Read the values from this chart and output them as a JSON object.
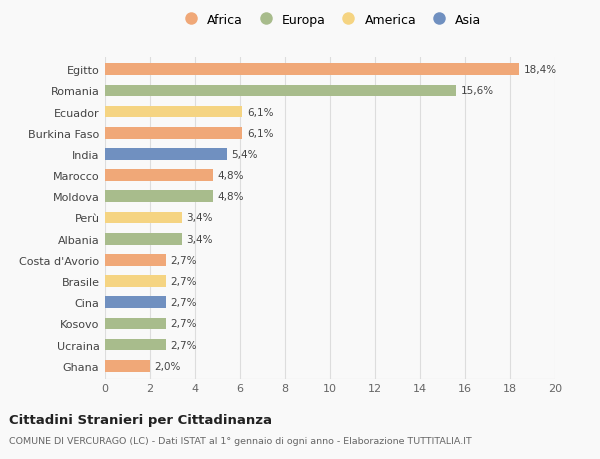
{
  "countries": [
    "Egitto",
    "Romania",
    "Ecuador",
    "Burkina Faso",
    "India",
    "Marocco",
    "Moldova",
    "Perù",
    "Albania",
    "Costa d'Avorio",
    "Brasile",
    "Cina",
    "Kosovo",
    "Ucraina",
    "Ghana"
  ],
  "values": [
    18.4,
    15.6,
    6.1,
    6.1,
    5.4,
    4.8,
    4.8,
    3.4,
    3.4,
    2.7,
    2.7,
    2.7,
    2.7,
    2.7,
    2.0
  ],
  "labels": [
    "18,4%",
    "15,6%",
    "6,1%",
    "6,1%",
    "5,4%",
    "4,8%",
    "4,8%",
    "3,4%",
    "3,4%",
    "2,7%",
    "2,7%",
    "2,7%",
    "2,7%",
    "2,7%",
    "2,0%"
  ],
  "continents": [
    "Africa",
    "Europa",
    "America",
    "Africa",
    "Asia",
    "Africa",
    "Europa",
    "America",
    "Europa",
    "Africa",
    "America",
    "Asia",
    "Europa",
    "Europa",
    "Africa"
  ],
  "continent_colors": {
    "Africa": "#F0A878",
    "Europa": "#A8BC8C",
    "America": "#F5D482",
    "Asia": "#7090C0"
  },
  "legend_order": [
    "Africa",
    "Europa",
    "America",
    "Asia"
  ],
  "xlim": [
    0,
    20
  ],
  "xticks": [
    0,
    2,
    4,
    6,
    8,
    10,
    12,
    14,
    16,
    18,
    20
  ],
  "title": "Cittadini Stranieri per Cittadinanza",
  "subtitle": "COMUNE DI VERCURAGO (LC) - Dati ISTAT al 1° gennaio di ogni anno - Elaborazione TUTTITALIA.IT",
  "background_color": "#f9f9f9",
  "bar_height": 0.55,
  "grid_color": "#dddddd"
}
